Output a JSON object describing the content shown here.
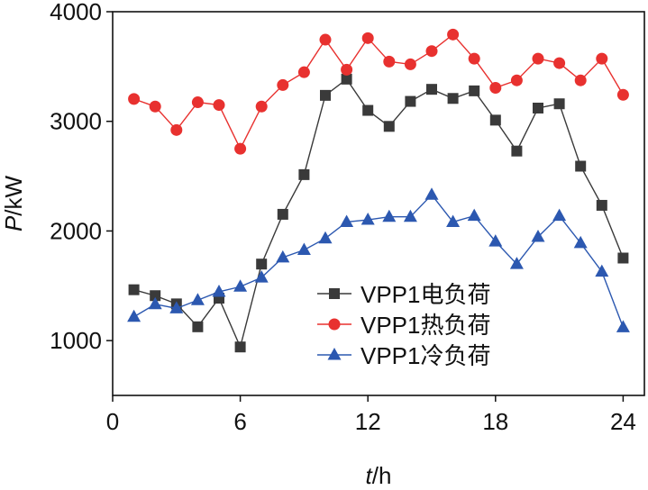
{
  "chart_data": {
    "type": "line",
    "title": "",
    "xlabel": "t/h",
    "xlabel_italic": "t",
    "xlabel_rest": "/h",
    "ylabel": "P/kW",
    "ylabel_italic": "P",
    "ylabel_rest": "/kW",
    "xlim": [
      0,
      25
    ],
    "ylim": [
      500,
      4000
    ],
    "xticks": [
      0,
      6,
      12,
      18,
      24
    ],
    "yticks": [
      1000,
      2000,
      3000,
      4000
    ],
    "grid": false,
    "legend_position": "lower-center",
    "x": [
      1,
      2,
      3,
      4,
      5,
      6,
      7,
      8,
      9,
      10,
      11,
      12,
      13,
      14,
      15,
      16,
      17,
      18,
      19,
      20,
      21,
      22,
      23,
      24
    ],
    "series": [
      {
        "name": "VPP1电负荷",
        "color": "#3a3a3a",
        "marker": "square",
        "values": [
          1464,
          1410,
          1335,
          1126,
          1387,
          942,
          1698,
          2152,
          2514,
          3237,
          3385,
          3100,
          2954,
          3182,
          3292,
          3209,
          3278,
          3011,
          2729,
          3121,
          3160,
          2591,
          2234,
          1753
        ]
      },
      {
        "name": "VPP1热负荷",
        "color": "#e8312f",
        "marker": "circle",
        "values": [
          3204,
          3135,
          2921,
          3174,
          3149,
          2750,
          3135,
          3331,
          3448,
          3745,
          3471,
          3759,
          3545,
          3520,
          3641,
          3792,
          3572,
          3306,
          3374,
          3572,
          3531,
          3374,
          3572,
          3242
        ]
      },
      {
        "name": "VPP1冷负荷",
        "color": "#2c58b0",
        "marker": "triangle",
        "values": [
          1217,
          1332,
          1294,
          1369,
          1445,
          1492,
          1575,
          1758,
          1827,
          1932,
          2082,
          2102,
          2129,
          2129,
          2330,
          2082,
          2138,
          1904,
          1698,
          1946,
          2138,
          1890,
          1629,
          1121
        ]
      }
    ]
  }
}
